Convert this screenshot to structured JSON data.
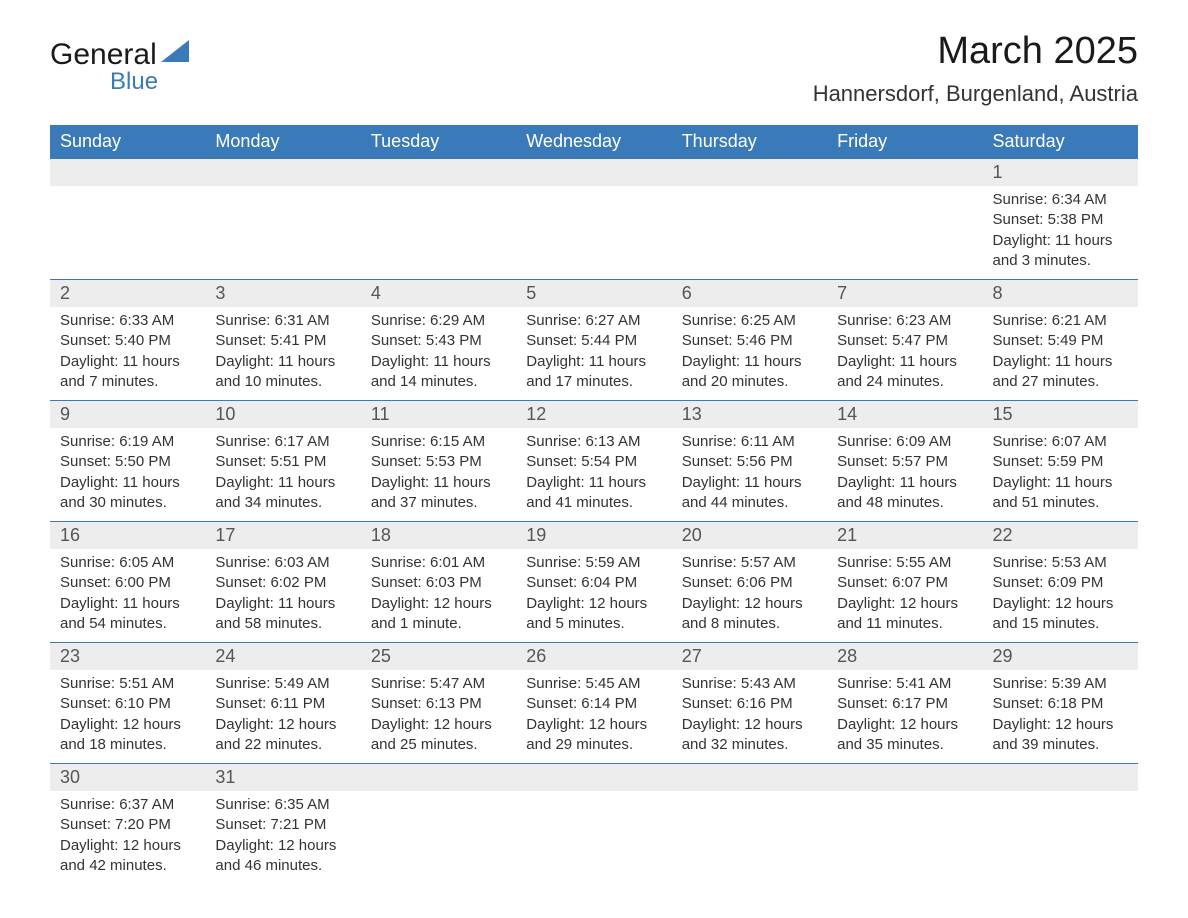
{
  "logo": {
    "word1": "General",
    "word2": "Blue",
    "word1_color": "#1a1a1a",
    "word2_color": "#3a7ab8",
    "triangle_color": "#3a7ab8"
  },
  "title": {
    "month": "March 2025",
    "location": "Hannersdorf, Burgenland, Austria",
    "month_fontsize": 38,
    "location_fontsize": 22
  },
  "colors": {
    "header_bg": "#3a7ab8",
    "header_text": "#ffffff",
    "daynum_bg": "#ededed",
    "daynum_text": "#555555",
    "body_text": "#333333",
    "row_divider": "#3a7ab8",
    "page_bg": "#ffffff"
  },
  "weekdays": [
    "Sunday",
    "Monday",
    "Tuesday",
    "Wednesday",
    "Thursday",
    "Friday",
    "Saturday"
  ],
  "weeks": [
    {
      "days": [
        null,
        null,
        null,
        null,
        null,
        null,
        {
          "n": "1",
          "sunrise": "Sunrise: 6:34 AM",
          "sunset": "Sunset: 5:38 PM",
          "daylight": "Daylight: 11 hours and 3 minutes."
        }
      ]
    },
    {
      "days": [
        {
          "n": "2",
          "sunrise": "Sunrise: 6:33 AM",
          "sunset": "Sunset: 5:40 PM",
          "daylight": "Daylight: 11 hours and 7 minutes."
        },
        {
          "n": "3",
          "sunrise": "Sunrise: 6:31 AM",
          "sunset": "Sunset: 5:41 PM",
          "daylight": "Daylight: 11 hours and 10 minutes."
        },
        {
          "n": "4",
          "sunrise": "Sunrise: 6:29 AM",
          "sunset": "Sunset: 5:43 PM",
          "daylight": "Daylight: 11 hours and 14 minutes."
        },
        {
          "n": "5",
          "sunrise": "Sunrise: 6:27 AM",
          "sunset": "Sunset: 5:44 PM",
          "daylight": "Daylight: 11 hours and 17 minutes."
        },
        {
          "n": "6",
          "sunrise": "Sunrise: 6:25 AM",
          "sunset": "Sunset: 5:46 PM",
          "daylight": "Daylight: 11 hours and 20 minutes."
        },
        {
          "n": "7",
          "sunrise": "Sunrise: 6:23 AM",
          "sunset": "Sunset: 5:47 PM",
          "daylight": "Daylight: 11 hours and 24 minutes."
        },
        {
          "n": "8",
          "sunrise": "Sunrise: 6:21 AM",
          "sunset": "Sunset: 5:49 PM",
          "daylight": "Daylight: 11 hours and 27 minutes."
        }
      ]
    },
    {
      "days": [
        {
          "n": "9",
          "sunrise": "Sunrise: 6:19 AM",
          "sunset": "Sunset: 5:50 PM",
          "daylight": "Daylight: 11 hours and 30 minutes."
        },
        {
          "n": "10",
          "sunrise": "Sunrise: 6:17 AM",
          "sunset": "Sunset: 5:51 PM",
          "daylight": "Daylight: 11 hours and 34 minutes."
        },
        {
          "n": "11",
          "sunrise": "Sunrise: 6:15 AM",
          "sunset": "Sunset: 5:53 PM",
          "daylight": "Daylight: 11 hours and 37 minutes."
        },
        {
          "n": "12",
          "sunrise": "Sunrise: 6:13 AM",
          "sunset": "Sunset: 5:54 PM",
          "daylight": "Daylight: 11 hours and 41 minutes."
        },
        {
          "n": "13",
          "sunrise": "Sunrise: 6:11 AM",
          "sunset": "Sunset: 5:56 PM",
          "daylight": "Daylight: 11 hours and 44 minutes."
        },
        {
          "n": "14",
          "sunrise": "Sunrise: 6:09 AM",
          "sunset": "Sunset: 5:57 PM",
          "daylight": "Daylight: 11 hours and 48 minutes."
        },
        {
          "n": "15",
          "sunrise": "Sunrise: 6:07 AM",
          "sunset": "Sunset: 5:59 PM",
          "daylight": "Daylight: 11 hours and 51 minutes."
        }
      ]
    },
    {
      "days": [
        {
          "n": "16",
          "sunrise": "Sunrise: 6:05 AM",
          "sunset": "Sunset: 6:00 PM",
          "daylight": "Daylight: 11 hours and 54 minutes."
        },
        {
          "n": "17",
          "sunrise": "Sunrise: 6:03 AM",
          "sunset": "Sunset: 6:02 PM",
          "daylight": "Daylight: 11 hours and 58 minutes."
        },
        {
          "n": "18",
          "sunrise": "Sunrise: 6:01 AM",
          "sunset": "Sunset: 6:03 PM",
          "daylight": "Daylight: 12 hours and 1 minute."
        },
        {
          "n": "19",
          "sunrise": "Sunrise: 5:59 AM",
          "sunset": "Sunset: 6:04 PM",
          "daylight": "Daylight: 12 hours and 5 minutes."
        },
        {
          "n": "20",
          "sunrise": "Sunrise: 5:57 AM",
          "sunset": "Sunset: 6:06 PM",
          "daylight": "Daylight: 12 hours and 8 minutes."
        },
        {
          "n": "21",
          "sunrise": "Sunrise: 5:55 AM",
          "sunset": "Sunset: 6:07 PM",
          "daylight": "Daylight: 12 hours and 11 minutes."
        },
        {
          "n": "22",
          "sunrise": "Sunrise: 5:53 AM",
          "sunset": "Sunset: 6:09 PM",
          "daylight": "Daylight: 12 hours and 15 minutes."
        }
      ]
    },
    {
      "days": [
        {
          "n": "23",
          "sunrise": "Sunrise: 5:51 AM",
          "sunset": "Sunset: 6:10 PM",
          "daylight": "Daylight: 12 hours and 18 minutes."
        },
        {
          "n": "24",
          "sunrise": "Sunrise: 5:49 AM",
          "sunset": "Sunset: 6:11 PM",
          "daylight": "Daylight: 12 hours and 22 minutes."
        },
        {
          "n": "25",
          "sunrise": "Sunrise: 5:47 AM",
          "sunset": "Sunset: 6:13 PM",
          "daylight": "Daylight: 12 hours and 25 minutes."
        },
        {
          "n": "26",
          "sunrise": "Sunrise: 5:45 AM",
          "sunset": "Sunset: 6:14 PM",
          "daylight": "Daylight: 12 hours and 29 minutes."
        },
        {
          "n": "27",
          "sunrise": "Sunrise: 5:43 AM",
          "sunset": "Sunset: 6:16 PM",
          "daylight": "Daylight: 12 hours and 32 minutes."
        },
        {
          "n": "28",
          "sunrise": "Sunrise: 5:41 AM",
          "sunset": "Sunset: 6:17 PM",
          "daylight": "Daylight: 12 hours and 35 minutes."
        },
        {
          "n": "29",
          "sunrise": "Sunrise: 5:39 AM",
          "sunset": "Sunset: 6:18 PM",
          "daylight": "Daylight: 12 hours and 39 minutes."
        }
      ]
    },
    {
      "days": [
        {
          "n": "30",
          "sunrise": "Sunrise: 6:37 AM",
          "sunset": "Sunset: 7:20 PM",
          "daylight": "Daylight: 12 hours and 42 minutes."
        },
        {
          "n": "31",
          "sunrise": "Sunrise: 6:35 AM",
          "sunset": "Sunset: 7:21 PM",
          "daylight": "Daylight: 12 hours and 46 minutes."
        },
        null,
        null,
        null,
        null,
        null
      ]
    }
  ]
}
